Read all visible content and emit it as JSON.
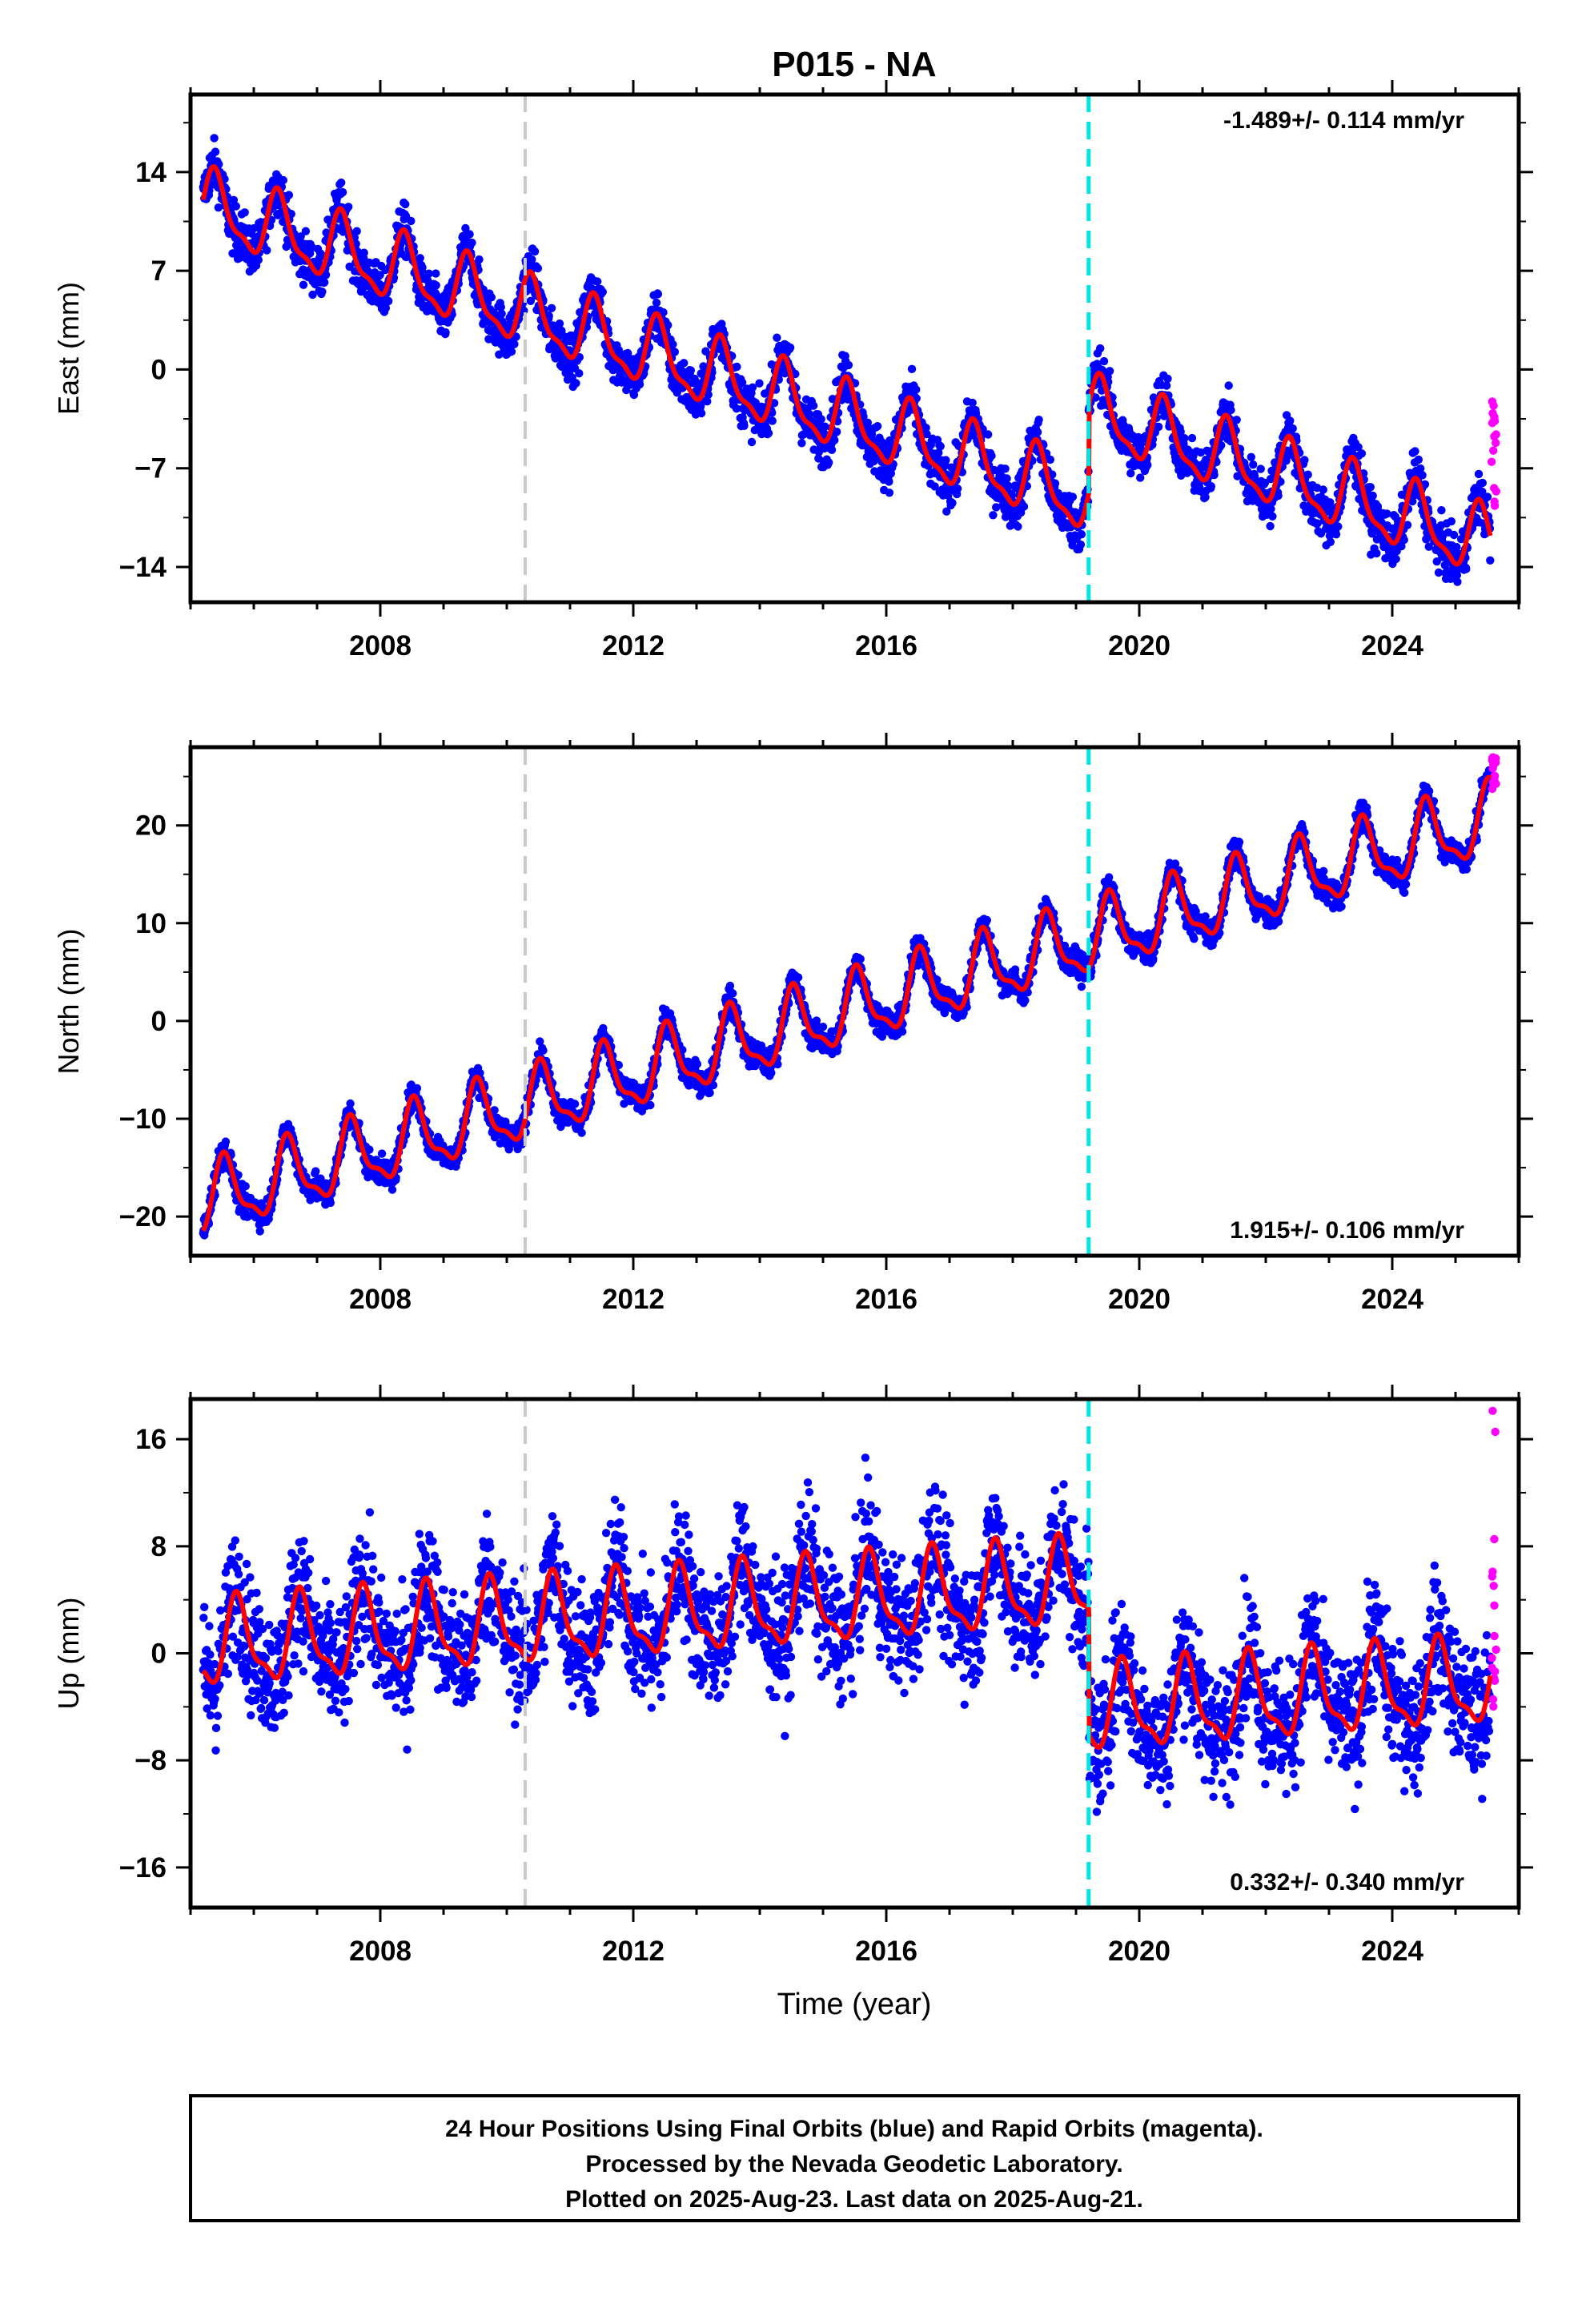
{
  "title": "P015 - NA",
  "xlabel": "Time (year)",
  "footer": [
    "24 Hour Positions Using Final Orbits (blue) and Rapid Orbits (magenta).",
    "Processed by the Nevada Geodetic Laboratory.",
    "Plotted on 2025-Aug-23. Last data on 2025-Aug-21."
  ],
  "colors": {
    "final": "#0000ff",
    "rapid": "#ff00ff",
    "model": "#ff0000",
    "equipment_change": "#c8c8c8",
    "earthquake": "#00e5e5"
  },
  "chart_data": [
    {
      "type": "scatter",
      "component": "East",
      "ylabel": "East (mm)",
      "xlim": [
        2005.0,
        2026.0
      ],
      "ylim": [
        -16.5,
        19.5
      ],
      "xticks": [
        "2008",
        "2012",
        "2016",
        "2020",
        "2024"
      ],
      "yticks": [
        "14",
        "7",
        "0",
        "-7",
        "-14"
      ],
      "rate_label": "-1.489+/- 0.114 mm/yr",
      "rate_position": "top-right",
      "equipment_change_year": 2010.29,
      "earthquake_year": 2019.2,
      "data_start": 2005.2,
      "data_end": 2025.55,
      "model": {
        "offset_at_start": 11.6,
        "rate_mm_per_yr": -1.489,
        "annual_amplitude": 2.3,
        "peak_phase_year_fraction": 0.4,
        "step_at_earthquake": 6.2
      },
      "scatter_mm": 1.5,
      "rapid_range": [
        -10.5,
        -2.2
      ]
    },
    {
      "type": "scatter",
      "component": "North",
      "ylabel": "North (mm)",
      "xlim": [
        2005.0,
        2026.0
      ],
      "ylim": [
        -24,
        28
      ],
      "xticks": [
        "2008",
        "2012",
        "2016",
        "2020",
        "2024"
      ],
      "yticks": [
        "20",
        "10",
        "0",
        "-10",
        "-20"
      ],
      "rate_label": "1.915+/- 0.106 mm/yr",
      "rate_position": "bottom-right",
      "equipment_change_year": 2010.29,
      "earthquake_year": 2019.2,
      "data_start": 2005.2,
      "data_end": 2025.55,
      "model": {
        "offset_at_start": -18.5,
        "rate_mm_per_yr": 1.915,
        "annual_amplitude": 3.4,
        "peak_phase_year_fraction": 0.55,
        "step_at_earthquake": 0
      },
      "scatter_mm": 1.2,
      "rapid_range": [
        23.5,
        27
      ]
    },
    {
      "type": "scatter",
      "component": "Up",
      "ylabel": "Up (mm)",
      "xlim": [
        2005.0,
        2026.0
      ],
      "ylim": [
        -19,
        19
      ],
      "xticks": [
        "2008",
        "2012",
        "2016",
        "2020",
        "2024"
      ],
      "yticks": [
        "16",
        "8",
        "0",
        "-8",
        "-16"
      ],
      "rate_label": "0.332+/- 0.340 mm/yr",
      "rate_position": "bottom-right",
      "equipment_change_year": 2010.29,
      "earthquake_year": 2019.2,
      "data_start": 2005.2,
      "data_end": 2025.55,
      "model": {
        "offset_at_start": 0.5,
        "rate_mm_per_yr": 0.332,
        "annual_amplitude": 3.0,
        "peak_phase_year_fraction": 0.75,
        "step_at_earthquake": -9.5
      },
      "scatter_mm": 4.0,
      "rapid_range": [
        -4,
        18.5
      ]
    }
  ]
}
